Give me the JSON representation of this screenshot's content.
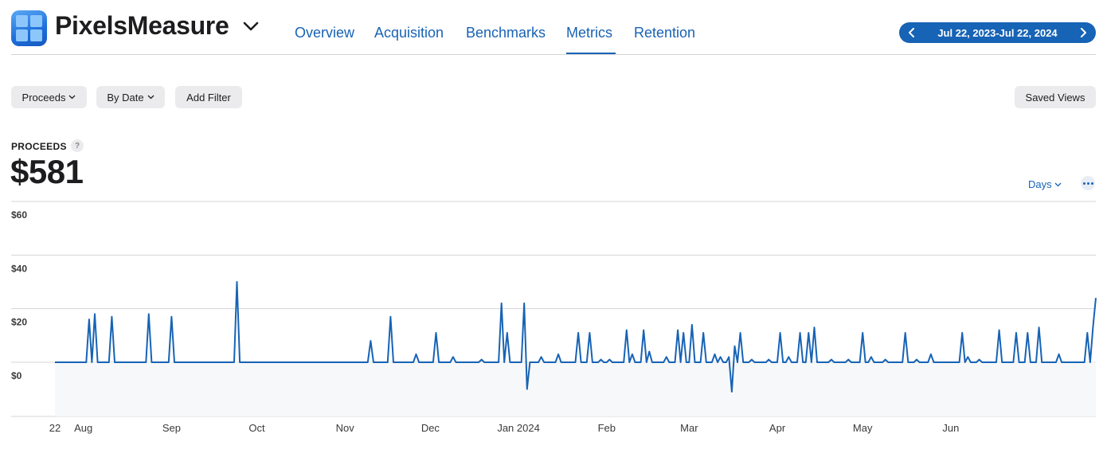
{
  "app": {
    "title": "PixelsMeasure"
  },
  "nav": {
    "tabs": [
      {
        "label": "Overview"
      },
      {
        "label": "Acquisition"
      },
      {
        "label": "Benchmarks"
      },
      {
        "label": "Metrics"
      },
      {
        "label": "Retention"
      }
    ],
    "active": "Metrics"
  },
  "date_range": {
    "label": "Jul 22, 2023-Jul 22, 2024"
  },
  "filters": {
    "measure": "Proceeds",
    "grouping": "By Date",
    "add_filter": "Add Filter",
    "saved_views": "Saved Views"
  },
  "kpi": {
    "label": "PROCEEDS",
    "help": "?",
    "value": "$581"
  },
  "controls": {
    "granularity": "Days"
  },
  "colors": {
    "accent": "#1763b5",
    "grid": "#d5d5d8",
    "area": "#f7f8f9"
  },
  "chart_data": {
    "type": "line",
    "title": "",
    "xlabel": "",
    "ylabel": "",
    "ylim": [
      -20,
      60
    ],
    "yticks": [
      "$60",
      "$40",
      "$20",
      "$0"
    ],
    "ytick_values": [
      60,
      40,
      20,
      0
    ],
    "xlim": [
      "2023-07-22",
      "2024-07-22"
    ],
    "xticks": [
      {
        "label": "22",
        "date": "2023-07-22"
      },
      {
        "label": "Aug",
        "date": "2023-08-01"
      },
      {
        "label": "Sep",
        "date": "2023-09-01"
      },
      {
        "label": "Oct",
        "date": "2023-10-01"
      },
      {
        "label": "Nov",
        "date": "2023-11-01"
      },
      {
        "label": "Dec",
        "date": "2023-12-01"
      },
      {
        "label": "Jan 2024",
        "date": "2024-01-01"
      },
      {
        "label": "Feb",
        "date": "2024-02-01"
      },
      {
        "label": "Mar",
        "date": "2024-03-01"
      },
      {
        "label": "Apr",
        "date": "2024-04-01"
      },
      {
        "label": "May",
        "date": "2024-05-01"
      },
      {
        "label": "Jun",
        "date": "2024-06-01"
      }
    ],
    "baseline": 0,
    "series": [
      {
        "points": [
          [
            "2023-07-22",
            0
          ],
          [
            "2023-08-03",
            16
          ],
          [
            "2023-08-05",
            18
          ],
          [
            "2023-08-11",
            17
          ],
          [
            "2023-08-24",
            18
          ],
          [
            "2023-09-01",
            17
          ],
          [
            "2023-09-24",
            30
          ],
          [
            "2023-11-10",
            8
          ],
          [
            "2023-11-17",
            17
          ],
          [
            "2023-11-26",
            3
          ],
          [
            "2023-12-03",
            11
          ],
          [
            "2023-12-09",
            2
          ],
          [
            "2023-12-19",
            1
          ],
          [
            "2023-12-26",
            22
          ],
          [
            "2023-12-28",
            11
          ],
          [
            "2024-01-03",
            22
          ],
          [
            "2024-01-04",
            -10
          ],
          [
            "2024-01-09",
            2
          ],
          [
            "2024-01-15",
            3
          ],
          [
            "2024-01-22",
            11
          ],
          [
            "2024-01-26",
            11
          ],
          [
            "2024-01-30",
            1
          ],
          [
            "2024-02-02",
            1
          ],
          [
            "2024-02-08",
            12
          ],
          [
            "2024-02-10",
            3
          ],
          [
            "2024-02-14",
            12
          ],
          [
            "2024-02-16",
            4
          ],
          [
            "2024-02-22",
            2
          ],
          [
            "2024-02-26",
            12
          ],
          [
            "2024-02-28",
            11
          ],
          [
            "2024-03-02",
            14
          ],
          [
            "2024-03-06",
            11
          ],
          [
            "2024-03-10",
            3
          ],
          [
            "2024-03-12",
            2
          ],
          [
            "2024-03-15",
            2
          ],
          [
            "2024-03-16",
            -11
          ],
          [
            "2024-03-17",
            6
          ],
          [
            "2024-03-19",
            11
          ],
          [
            "2024-03-23",
            1
          ],
          [
            "2024-03-29",
            1
          ],
          [
            "2024-04-02",
            11
          ],
          [
            "2024-04-05",
            2
          ],
          [
            "2024-04-09",
            11
          ],
          [
            "2024-04-12",
            11
          ],
          [
            "2024-04-14",
            13
          ],
          [
            "2024-04-20",
            1
          ],
          [
            "2024-04-26",
            1
          ],
          [
            "2024-05-01",
            11
          ],
          [
            "2024-05-04",
            2
          ],
          [
            "2024-05-09",
            1
          ],
          [
            "2024-05-16",
            11
          ],
          [
            "2024-05-20",
            1
          ],
          [
            "2024-05-25",
            3
          ],
          [
            "2024-06-05",
            11
          ],
          [
            "2024-06-07",
            2
          ],
          [
            "2024-06-11",
            1
          ],
          [
            "2024-06-18",
            12
          ],
          [
            "2024-06-24",
            11
          ],
          [
            "2024-06-28",
            11
          ],
          [
            "2024-07-02",
            13
          ],
          [
            "2024-07-09",
            3
          ],
          [
            "2024-07-19",
            11
          ],
          [
            "2024-07-21",
            13
          ],
          [
            "2024-07-22",
            24
          ]
        ]
      }
    ]
  }
}
